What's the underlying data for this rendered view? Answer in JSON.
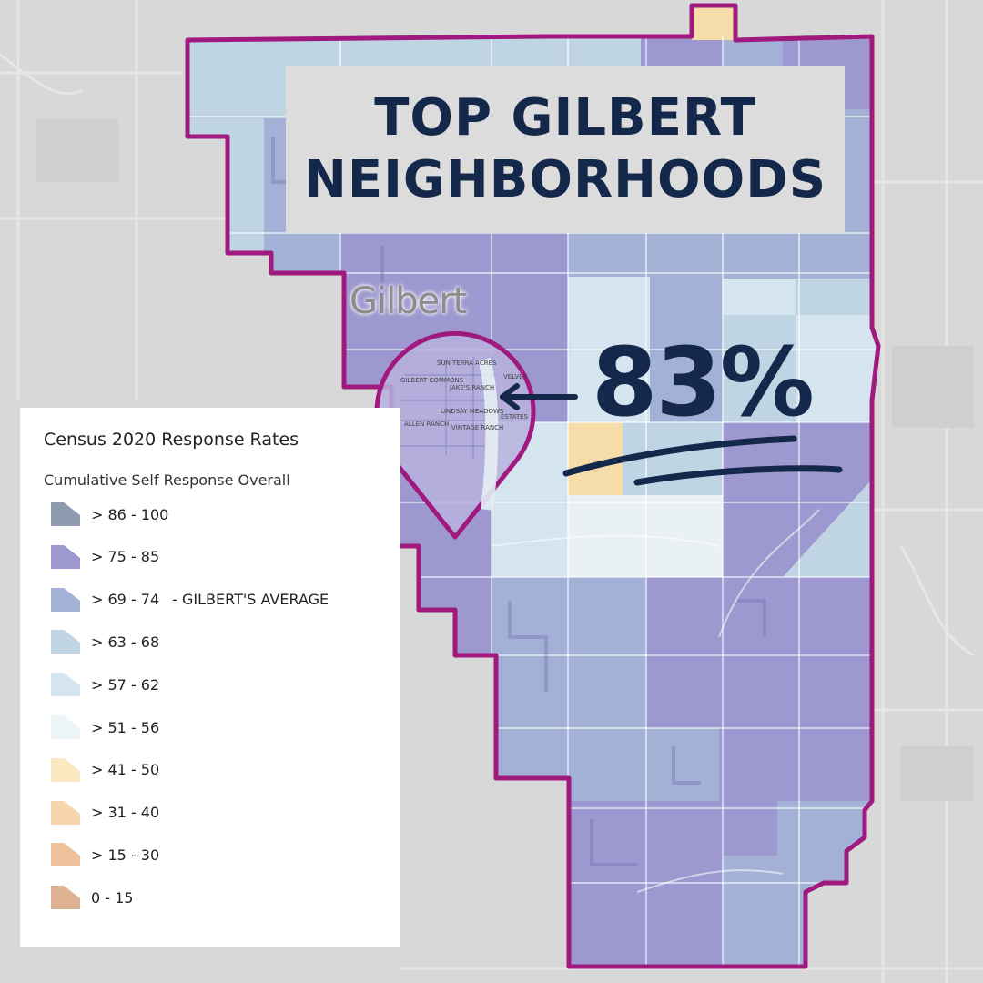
{
  "title": {
    "line1": "TOP GILBERT",
    "line2": "NEIGHBORHOODS"
  },
  "highlight": {
    "value_label": "83%",
    "value": 83
  },
  "map": {
    "place_label": "Gilbert",
    "neighborhood_labels": [
      "SUN TERRA ACRES",
      "GILBERT COMMONS",
      "JAKE'S RANCH",
      "VELVET",
      "LINDSAY MEADOWS",
      "ESTATES",
      "ALLEN RANCH",
      "VINTAGE RANCH"
    ]
  },
  "legend": {
    "title": "Census 2020 Response Rates",
    "subtitle": "Cumulative Self Response Overall",
    "items": [
      {
        "label": "> 86 - 100",
        "color": "#8f9bb0",
        "note": ""
      },
      {
        "label": "> 75 - 85",
        "color": "#9d98cf",
        "note": ""
      },
      {
        "label": "> 69 - 74",
        "color": "#a3b1d6",
        "note": "- GILBERT'S AVERAGE"
      },
      {
        "label": "> 63 - 68",
        "color": "#bfd5e4",
        "note": ""
      },
      {
        "label": "> 57 - 62",
        "color": "#d4e5ef",
        "note": ""
      },
      {
        "label": "> 51 - 56",
        "color": "#eef5f8",
        "note": ""
      },
      {
        "label": "> 41 - 50",
        "color": "#fbe9c2",
        "note": ""
      },
      {
        "label": "> 31 - 40",
        "color": "#f7d6ae",
        "note": ""
      },
      {
        "label": "> 15 - 30",
        "color": "#efc19a",
        "note": ""
      },
      {
        "label": "0 - 15",
        "color": "#dfb294",
        "note": ""
      }
    ]
  },
  "colors": {
    "boundary": "#a0197e",
    "navy": "#14284b",
    "dark_purple": "#9d98cf",
    "mid_blue": "#a3b1d6",
    "light_blue": "#bfd5e4",
    "pale_blue": "#d4e5ef",
    "very_pale": "#e9f1f4",
    "yellow": "#f5dca8"
  }
}
